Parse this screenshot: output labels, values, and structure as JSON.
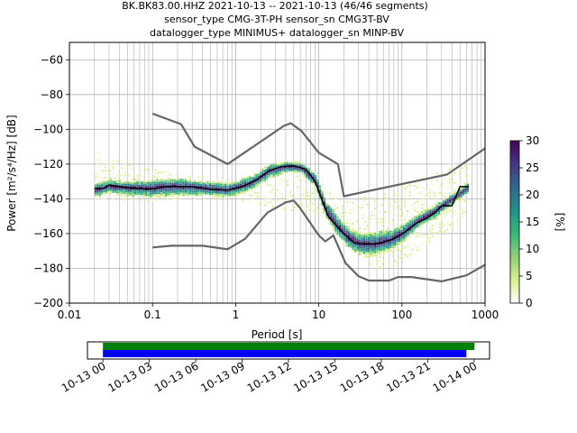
{
  "title_lines": [
    "BK.BK83.00.HHZ   2021-10-13 -- 2021-10-13  (46/46 segments)",
    "sensor_type CMG-3T-PH sensor_sn CMG3T-BV",
    "datalogger_type MINIMUS+ datalogger_sn MINP-BV"
  ],
  "chart_data": [
    {
      "type": "heatmap",
      "xlabel": "Period [s]",
      "ylabel": "Power [m²/s⁴/Hz] [dB]",
      "x_scale": "log",
      "xlim": [
        0.01,
        1000
      ],
      "ylim": [
        -200,
        -50
      ],
      "x_ticks": [
        0.01,
        0.1,
        1,
        10,
        100,
        1000
      ],
      "x_tick_labels": [
        "0.01",
        "0.1",
        "1",
        "10",
        "100",
        "1000"
      ],
      "y_ticks": [
        -200,
        -180,
        -160,
        -140,
        -120,
        -100,
        -80,
        -60
      ],
      "y_tick_labels": [
        "−200",
        "−180",
        "−160",
        "−140",
        "−120",
        "−100",
        "−80",
        "−60"
      ],
      "grid": true,
      "colorbar": {
        "label": "[%]",
        "range": [
          0,
          30
        ],
        "ticks": [
          0,
          5,
          10,
          15,
          20,
          25,
          30
        ],
        "colormap": [
          "#ffffff",
          "#d9ef8b",
          "#8fd07a",
          "#35b779",
          "#21918c",
          "#31688e",
          "#443983",
          "#440154"
        ]
      },
      "series": [
        {
          "name": "",
          "role": "noise model upper",
          "color": "#666666",
          "points": [
            [
              0.1,
              -91
            ],
            [
              0.22,
              -97
            ],
            [
              0.32,
              -110
            ],
            [
              0.8,
              -120
            ],
            [
              3.8,
              -98
            ],
            [
              4.6,
              -96.5
            ],
            [
              6.2,
              -101
            ],
            [
              10,
              -113.5
            ],
            [
              17,
              -120
            ],
            [
              20,
              -138.5
            ],
            [
              350,
              -126
            ],
            [
              1000,
              -111
            ]
          ]
        },
        {
          "name": "",
          "role": "noise model lower",
          "color": "#666666",
          "points": [
            [
              0.1,
              -168
            ],
            [
              0.17,
              -167
            ],
            [
              0.4,
              -167
            ],
            [
              0.8,
              -169
            ],
            [
              1.3,
              -163
            ],
            [
              2.4,
              -148
            ],
            [
              4.0,
              -142
            ],
            [
              5.0,
              -141
            ],
            [
              6.0,
              -145.5
            ],
            [
              10,
              -161
            ],
            [
              12,
              -164.5
            ],
            [
              15,
              -161
            ],
            [
              21,
              -177
            ],
            [
              30,
              -184.5
            ],
            [
              40,
              -187
            ],
            [
              70,
              -187
            ],
            [
              90,
              -185
            ],
            [
              130,
              -185
            ],
            [
              300,
              -187.5
            ],
            [
              600,
              -184
            ],
            [
              1000,
              -178
            ]
          ]
        },
        {
          "name": "",
          "role": "mode",
          "color": "#000000",
          "points": [
            [
              0.02,
              -134
            ],
            [
              0.026,
              -134
            ],
            [
              0.03,
              -132
            ],
            [
              0.04,
              -133
            ],
            [
              0.06,
              -134
            ],
            [
              0.09,
              -134.5
            ],
            [
              0.15,
              -133
            ],
            [
              0.3,
              -133
            ],
            [
              0.5,
              -134.5
            ],
            [
              0.8,
              -135
            ],
            [
              1.2,
              -133
            ],
            [
              1.8,
              -129
            ],
            [
              2.5,
              -124
            ],
            [
              3.5,
              -121.5
            ],
            [
              5,
              -121
            ],
            [
              7,
              -123
            ],
            [
              9,
              -130
            ],
            [
              11,
              -141
            ],
            [
              13,
              -150
            ],
            [
              16,
              -155
            ],
            [
              20,
              -160
            ],
            [
              26,
              -165
            ],
            [
              32,
              -166
            ],
            [
              45,
              -166
            ],
            [
              60,
              -165
            ],
            [
              80,
              -163
            ],
            [
              110,
              -159
            ],
            [
              150,
              -154
            ],
            [
              200,
              -151
            ],
            [
              250,
              -148
            ],
            [
              300,
              -144
            ],
            [
              400,
              -144
            ],
            [
              500,
              -133
            ],
            [
              640,
              -133
            ]
          ]
        }
      ],
      "density_band": {
        "periods": [
          0.02,
          0.03,
          0.05,
          0.1,
          0.2,
          0.4,
          0.8,
          1.5,
          2.5,
          4,
          6,
          9,
          12,
          16,
          22,
          30,
          45,
          70,
          100,
          150,
          250,
          400,
          640
        ],
        "center": [
          -135,
          -133,
          -134,
          -134,
          -133,
          -134,
          -135,
          -131,
          -124,
          -121.5,
          -122,
          -130,
          -146,
          -155,
          -162,
          -166,
          -166,
          -164,
          -160,
          -153,
          -147,
          -140,
          -133
        ],
        "halfwidth": [
          4,
          4,
          4,
          5,
          5,
          4,
          4,
          4,
          4,
          3,
          3,
          4,
          5,
          6,
          6,
          6,
          7,
          6,
          5,
          4,
          4,
          3,
          3
        ]
      },
      "faint_band": {
        "periods": [
          0.02,
          0.05,
          0.1,
          0.2,
          0.4,
          0.8,
          10,
          15,
          20,
          40,
          70,
          150,
          300,
          640
        ],
        "upper": [
          -112,
          -120,
          -123,
          -125,
          -128,
          -130,
          -125,
          -140,
          -142,
          -139,
          -136,
          -129,
          -124,
          -120
        ],
        "lower": [
          -140,
          -141,
          -142,
          -140,
          -140,
          -140,
          -150,
          -152,
          -158,
          -180,
          -180,
          -170,
          -160,
          -150
        ]
      }
    },
    {
      "type": "timeline",
      "x_tick_labels": [
        "10-13 00",
        "10-13 03",
        "10-13 06",
        "10-13 09",
        "10-13 12",
        "10-13 15",
        "10-13 18",
        "10-13 21",
        "10-14 00"
      ],
      "xlim_hours": [
        -1,
        25
      ],
      "bars": [
        {
          "color": "#008000",
          "start_hour": 0,
          "end_hour": 23.5
        },
        {
          "color": "#0000ff",
          "start_hour": 0,
          "end_hour": 23.5
        }
      ]
    }
  ]
}
